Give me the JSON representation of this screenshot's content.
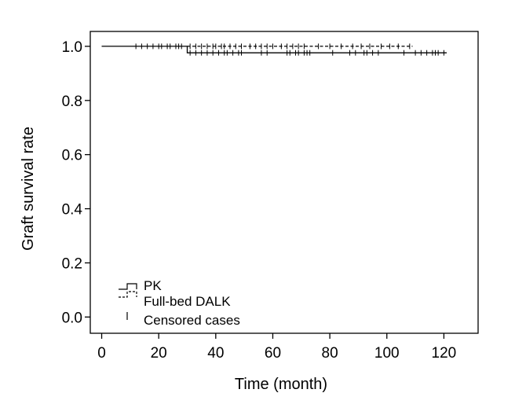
{
  "chart_data": {
    "type": "line",
    "title": "",
    "xlabel": "Time (month)",
    "ylabel": "Graft survival rate",
    "xlim": [
      -4,
      132
    ],
    "ylim": [
      -0.06,
      1.055
    ],
    "xticks": [
      0,
      20,
      40,
      60,
      80,
      100,
      120
    ],
    "yticks": [
      0.0,
      0.2,
      0.4,
      0.6,
      0.8,
      1.0
    ],
    "ytick_labels": [
      "0.0",
      "0.2",
      "0.4",
      "0.6",
      "0.8",
      "1.0"
    ],
    "grid": false,
    "legend": {
      "placement": "bottom-left",
      "entries": [
        "PK",
        "Full-bed DALK",
        "Censored cases"
      ]
    },
    "series": [
      {
        "name": "PK",
        "style": "solid",
        "steps": [
          [
            0,
            1.0
          ],
          [
            30,
            1.0
          ],
          [
            30,
            0.976
          ],
          [
            121,
            0.976
          ]
        ],
        "censored": [
          [
            12,
            1.0
          ],
          [
            14,
            1.0
          ],
          [
            16,
            1.0
          ],
          [
            18,
            1.0
          ],
          [
            20,
            1.0
          ],
          [
            21,
            1.0
          ],
          [
            23,
            1.0
          ],
          [
            24,
            1.0
          ],
          [
            26,
            1.0
          ],
          [
            27,
            1.0
          ],
          [
            28,
            1.0
          ],
          [
            31,
            0.976
          ],
          [
            33,
            0.976
          ],
          [
            35,
            0.976
          ],
          [
            37,
            0.976
          ],
          [
            39,
            0.976
          ],
          [
            41,
            0.976
          ],
          [
            43,
            0.976
          ],
          [
            44,
            0.976
          ],
          [
            46,
            0.976
          ],
          [
            48,
            0.976
          ],
          [
            49,
            0.976
          ],
          [
            56,
            0.976
          ],
          [
            58,
            0.976
          ],
          [
            65,
            0.976
          ],
          [
            66,
            0.976
          ],
          [
            68,
            0.976
          ],
          [
            69,
            0.976
          ],
          [
            71,
            0.976
          ],
          [
            72,
            0.976
          ],
          [
            73,
            0.976
          ],
          [
            81,
            0.976
          ],
          [
            87,
            0.976
          ],
          [
            89,
            0.976
          ],
          [
            92,
            0.976
          ],
          [
            93,
            0.976
          ],
          [
            95,
            0.976
          ],
          [
            97,
            0.976
          ],
          [
            106,
            0.976
          ],
          [
            110,
            0.976
          ],
          [
            112,
            0.976
          ],
          [
            114,
            0.976
          ],
          [
            116,
            0.976
          ],
          [
            117,
            0.976
          ],
          [
            118,
            0.976
          ],
          [
            120,
            0.976
          ]
        ]
      },
      {
        "name": "Full-bed DALK",
        "style": "dashed",
        "steps": [
          [
            30,
            1.0
          ],
          [
            109,
            1.0
          ]
        ],
        "censored": [
          [
            31,
            1.0
          ],
          [
            33,
            1.0
          ],
          [
            35,
            1.0
          ],
          [
            37,
            1.0
          ],
          [
            39,
            1.0
          ],
          [
            40,
            1.0
          ],
          [
            42,
            1.0
          ],
          [
            43,
            1.0
          ],
          [
            45,
            1.0
          ],
          [
            47,
            1.0
          ],
          [
            49,
            1.0
          ],
          [
            52,
            1.0
          ],
          [
            54,
            1.0
          ],
          [
            56,
            1.0
          ],
          [
            58,
            1.0
          ],
          [
            60,
            1.0
          ],
          [
            63,
            1.0
          ],
          [
            65,
            1.0
          ],
          [
            67,
            1.0
          ],
          [
            69,
            1.0
          ],
          [
            71,
            1.0
          ],
          [
            76,
            1.0
          ],
          [
            80,
            1.0
          ],
          [
            84,
            1.0
          ],
          [
            88,
            1.0
          ],
          [
            91,
            1.0
          ],
          [
            94,
            1.0
          ],
          [
            98,
            1.0
          ],
          [
            101,
            1.0
          ],
          [
            104,
            1.0
          ],
          [
            108,
            1.0
          ]
        ]
      }
    ]
  }
}
